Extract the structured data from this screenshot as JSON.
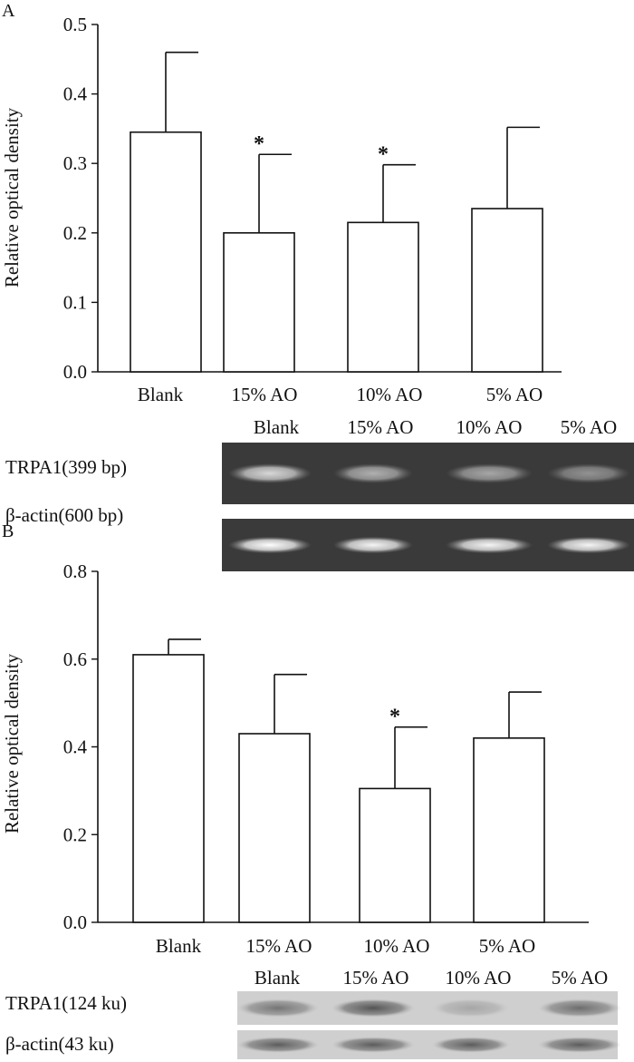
{
  "chart_data": [
    {
      "panel_label": "A",
      "type": "bar",
      "ylabel": "Relative optical density",
      "ylim": [
        0,
        0.5
      ],
      "yticks": [
        "0.0",
        "0.1",
        "0.2",
        "0.3",
        "0.4",
        "0.5"
      ],
      "categories": [
        "Blank",
        "15% AO",
        "10% AO",
        "5% AO"
      ],
      "values": [
        0.345,
        0.2,
        0.215,
        0.235
      ],
      "errors": [
        0.115,
        0.113,
        0.083,
        0.117
      ],
      "annotations": [
        "",
        "*",
        "*",
        ""
      ],
      "blot": {
        "lane_labels": [
          "Blank",
          "15% AO",
          "10% AO",
          "5% AO"
        ],
        "rows": [
          {
            "label": "TRPA1(399 bp)",
            "intensity": [
              0.8,
              0.6,
              0.55,
              0.45
            ]
          },
          {
            "label": "β-actin(600 bp)",
            "intensity": [
              1.0,
              0.95,
              0.95,
              0.95
            ]
          }
        ]
      }
    },
    {
      "panel_label": "B",
      "type": "bar",
      "ylabel": "Relative optical density",
      "ylim": [
        0,
        0.8
      ],
      "yticks": [
        "0.0",
        "0.2",
        "0.4",
        "0.6",
        "0.8"
      ],
      "categories": [
        "Blank",
        "15% AO",
        "10% AO",
        "5% AO"
      ],
      "values": [
        0.61,
        0.43,
        0.305,
        0.42
      ],
      "errors": [
        0.035,
        0.135,
        0.14,
        0.105
      ],
      "annotations": [
        "",
        "",
        "*",
        ""
      ],
      "blot": {
        "lane_labels": [
          "Blank",
          "15% AO",
          "10% AO",
          "5% AO"
        ],
        "rows": [
          {
            "label": "TRPA1(124 ku)",
            "intensity": [
              0.55,
              0.75,
              0.25,
              0.6
            ]
          },
          {
            "label": "β-actin(43 ku)",
            "intensity": [
              0.7,
              0.7,
              0.7,
              0.7
            ]
          }
        ]
      }
    }
  ]
}
